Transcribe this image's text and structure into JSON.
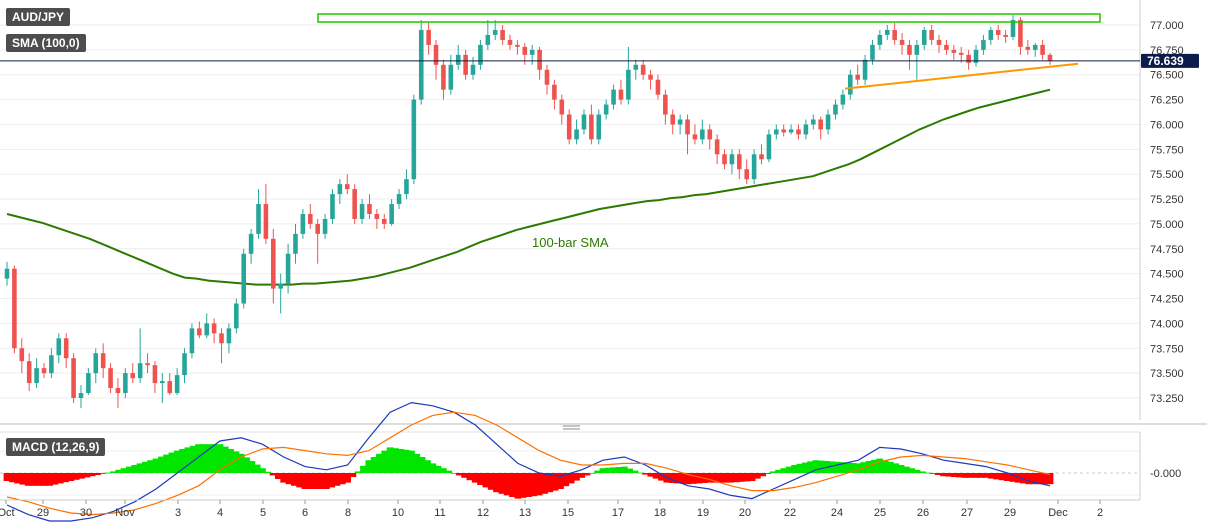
{
  "header": {
    "symbol": "AUD/JPY",
    "sma_label": "SMA (100,0)",
    "macd_label": "MACD (12,26,9)"
  },
  "colors": {
    "bull": "#26a69a",
    "bear": "#ef5350",
    "sma": "#2d7a00",
    "trendline": "#ff9800",
    "resistance": "#27c200",
    "macd_line": "#1c39bb",
    "signal_line": "#ff7000",
    "hist_pos": "#00e600",
    "hist_neg": "#ff0000",
    "price_tag": "#0d1b4a"
  },
  "chart_data": [
    {
      "type": "candlestick",
      "title": "AUD/JPY",
      "price_label": "76.639",
      "last_price": 76.639,
      "ylim": [
        73.05,
        77.22
      ],
      "y_ticks": [
        "77.000",
        "76.750",
        "76.500",
        "76.250",
        "76.000",
        "75.750",
        "75.500",
        "75.250",
        "75.000",
        "74.750",
        "74.500",
        "74.250",
        "74.000",
        "73.750",
        "73.500",
        "73.250"
      ],
      "x_ticks": [
        "Oct",
        "29",
        "30",
        "Nov",
        "3",
        "4",
        "5",
        "6",
        "8",
        "10",
        "11",
        "12",
        "13",
        "15",
        "17",
        "18",
        "19",
        "20",
        "22",
        "24",
        "25",
        "26",
        "27",
        "29",
        "Dec",
        "2"
      ],
      "candles": [
        [
          74.45,
          74.55,
          74.62,
          74.38
        ],
        [
          74.55,
          73.75,
          74.58,
          73.7
        ],
        [
          73.75,
          73.62,
          73.85,
          73.5
        ],
        [
          73.62,
          73.4,
          73.7,
          73.32
        ],
        [
          73.4,
          73.55,
          73.65,
          73.35
        ],
        [
          73.55,
          73.5,
          73.6,
          73.45
        ],
        [
          73.5,
          73.68,
          73.75,
          73.45
        ],
        [
          73.68,
          73.85,
          73.9,
          73.6
        ],
        [
          73.85,
          73.65,
          73.9,
          73.55
        ],
        [
          73.65,
          73.25,
          73.7,
          73.2
        ],
        [
          73.25,
          73.3,
          73.38,
          73.15
        ],
        [
          73.3,
          73.5,
          73.55,
          73.28
        ],
        [
          73.5,
          73.7,
          73.75,
          73.4
        ],
        [
          73.7,
          73.55,
          73.8,
          73.45
        ],
        [
          73.55,
          73.35,
          73.6,
          73.3
        ],
        [
          73.35,
          73.3,
          73.45,
          73.15
        ],
        [
          73.3,
          73.5,
          73.55,
          73.25
        ],
        [
          73.5,
          73.45,
          73.6,
          73.4
        ],
        [
          73.45,
          73.6,
          73.95,
          73.4
        ],
        [
          73.6,
          73.58,
          73.7,
          73.5
        ],
        [
          73.58,
          73.4,
          73.62,
          73.3
        ],
        [
          73.4,
          73.42,
          73.5,
          73.2
        ],
        [
          73.42,
          73.3,
          73.5,
          73.28
        ],
        [
          73.3,
          73.48,
          73.55,
          73.28
        ],
        [
          73.48,
          73.7,
          73.75,
          73.4
        ],
        [
          73.7,
          73.95,
          74.0,
          73.65
        ],
        [
          73.95,
          73.88,
          74.02,
          73.85
        ],
        [
          73.88,
          74.0,
          74.1,
          73.85
        ],
        [
          74.0,
          73.9,
          74.05,
          73.8
        ],
        [
          73.9,
          73.8,
          73.95,
          73.6
        ],
        [
          73.8,
          73.95,
          74.0,
          73.7
        ],
        [
          73.95,
          74.2,
          74.25,
          73.9
        ],
        [
          74.2,
          74.7,
          74.75,
          74.15
        ],
        [
          74.7,
          74.9,
          74.95,
          74.6
        ],
        [
          74.9,
          75.2,
          75.35,
          74.85
        ],
        [
          75.2,
          74.85,
          75.4,
          74.8
        ],
        [
          74.85,
          74.35,
          74.95,
          74.2
        ],
        [
          74.35,
          74.4,
          74.5,
          74.1
        ],
        [
          74.4,
          74.7,
          74.8,
          74.3
        ],
        [
          74.7,
          74.9,
          75.0,
          74.6
        ],
        [
          74.9,
          75.1,
          75.15,
          74.85
        ],
        [
          75.1,
          75.0,
          75.2,
          74.95
        ],
        [
          75.0,
          74.9,
          75.05,
          74.6
        ],
        [
          74.9,
          75.05,
          75.1,
          74.85
        ],
        [
          75.05,
          75.3,
          75.35,
          75.0
        ],
        [
          75.3,
          75.4,
          75.45,
          75.2
        ],
        [
          75.4,
          75.35,
          75.5,
          75.3
        ],
        [
          75.35,
          75.05,
          75.4,
          75.0
        ],
        [
          75.05,
          75.2,
          75.25,
          75.0
        ],
        [
          75.2,
          75.1,
          75.3,
          75.05
        ],
        [
          75.1,
          75.05,
          75.15,
          74.95
        ],
        [
          75.05,
          75.0,
          75.1,
          74.95
        ],
        [
          75.0,
          75.2,
          75.25,
          74.98
        ],
        [
          75.2,
          75.3,
          75.35,
          75.15
        ],
        [
          75.3,
          75.45,
          75.55,
          75.25
        ],
        [
          75.45,
          76.25,
          76.3,
          75.4
        ],
        [
          76.25,
          76.95,
          77.05,
          76.2
        ],
        [
          76.95,
          76.8,
          77.02,
          76.7
        ],
        [
          76.8,
          76.6,
          76.85,
          76.45
        ],
        [
          76.6,
          76.35,
          76.65,
          76.25
        ],
        [
          76.35,
          76.6,
          76.7,
          76.3
        ],
        [
          76.6,
          76.7,
          76.8,
          76.55
        ],
        [
          76.7,
          76.5,
          76.75,
          76.45
        ],
        [
          76.5,
          76.6,
          76.68,
          76.45
        ],
        [
          76.6,
          76.8,
          76.85,
          76.55
        ],
        [
          76.8,
          76.9,
          77.05,
          76.75
        ],
        [
          76.9,
          76.95,
          77.05,
          76.85
        ],
        [
          76.95,
          76.85,
          77.0,
          76.8
        ],
        [
          76.85,
          76.8,
          76.9,
          76.75
        ],
        [
          76.8,
          76.78,
          76.85,
          76.7
        ],
        [
          76.78,
          76.7,
          76.82,
          76.6
        ],
        [
          76.7,
          76.75,
          76.8,
          76.6
        ],
        [
          76.75,
          76.55,
          76.78,
          76.45
        ],
        [
          76.55,
          76.4,
          76.6,
          76.3
        ],
        [
          76.4,
          76.25,
          76.45,
          76.15
        ],
        [
          76.25,
          76.1,
          76.3,
          76.0
        ],
        [
          76.1,
          75.85,
          76.15,
          75.8
        ],
        [
          75.85,
          75.95,
          76.05,
          75.8
        ],
        [
          75.95,
          76.1,
          76.15,
          75.9
        ],
        [
          76.1,
          75.85,
          76.2,
          75.8
        ],
        [
          75.85,
          76.1,
          76.15,
          75.8
        ],
        [
          76.1,
          76.2,
          76.25,
          76.05
        ],
        [
          76.2,
          76.35,
          76.4,
          76.15
        ],
        [
          76.35,
          76.25,
          76.45,
          76.2
        ],
        [
          76.25,
          76.55,
          76.78,
          76.2
        ],
        [
          76.55,
          76.6,
          76.65,
          76.45
        ],
        [
          76.6,
          76.5,
          76.65,
          76.45
        ],
        [
          76.5,
          76.45,
          76.55,
          76.35
        ],
        [
          76.45,
          76.3,
          76.5,
          76.25
        ],
        [
          76.3,
          76.1,
          76.35,
          76.0
        ],
        [
          76.1,
          76.0,
          76.15,
          75.9
        ],
        [
          76.0,
          76.05,
          76.1,
          75.9
        ],
        [
          76.05,
          75.9,
          76.1,
          75.7
        ],
        [
          75.9,
          75.85,
          76.0,
          75.8
        ],
        [
          75.85,
          75.95,
          76.05,
          75.8
        ],
        [
          75.95,
          75.85,
          76.0,
          75.75
        ],
        [
          75.85,
          75.7,
          75.9,
          75.6
        ],
        [
          75.7,
          75.6,
          75.75,
          75.55
        ],
        [
          75.6,
          75.7,
          75.75,
          75.5
        ],
        [
          75.7,
          75.55,
          75.75,
          75.45
        ],
        [
          75.55,
          75.45,
          75.65,
          75.4
        ],
        [
          75.45,
          75.7,
          75.75,
          75.4
        ],
        [
          75.7,
          75.65,
          75.8,
          75.6
        ],
        [
          75.65,
          75.9,
          75.95,
          75.62
        ],
        [
          75.9,
          75.95,
          76.0,
          75.85
        ],
        [
          75.95,
          75.92,
          76.0,
          75.88
        ],
        [
          75.92,
          75.95,
          76.0,
          75.9
        ],
        [
          75.95,
          75.9,
          76.0,
          75.85
        ],
        [
          75.9,
          76.0,
          76.05,
          75.85
        ],
        [
          76.0,
          76.05,
          76.1,
          75.95
        ],
        [
          76.05,
          75.95,
          76.08,
          75.85
        ],
        [
          75.95,
          76.1,
          76.15,
          75.9
        ],
        [
          76.1,
          76.2,
          76.25,
          76.05
        ],
        [
          76.2,
          76.3,
          76.35,
          76.15
        ],
        [
          76.3,
          76.5,
          76.55,
          76.25
        ],
        [
          76.5,
          76.45,
          76.6,
          76.4
        ],
        [
          76.45,
          76.65,
          76.7,
          76.4
        ],
        [
          76.65,
          76.8,
          76.85,
          76.6
        ],
        [
          76.8,
          76.9,
          76.95,
          76.75
        ],
        [
          76.9,
          76.95,
          77.0,
          76.85
        ],
        [
          76.95,
          76.85,
          77.02,
          76.8
        ],
        [
          76.85,
          76.8,
          76.92,
          76.7
        ],
        [
          76.8,
          76.7,
          76.85,
          76.55
        ],
        [
          76.7,
          76.8,
          76.85,
          76.45
        ],
        [
          76.8,
          76.95,
          76.98,
          76.75
        ],
        [
          76.95,
          76.85,
          77.0,
          76.8
        ],
        [
          76.85,
          76.8,
          76.9,
          76.72
        ],
        [
          76.8,
          76.75,
          76.85,
          76.7
        ],
        [
          76.75,
          76.72,
          76.8,
          76.65
        ],
        [
          76.72,
          76.7,
          76.78,
          76.62
        ],
        [
          76.7,
          76.62,
          76.75,
          76.55
        ],
        [
          76.62,
          76.75,
          76.8,
          76.58
        ],
        [
          76.75,
          76.85,
          76.9,
          76.7
        ],
        [
          76.85,
          76.95,
          76.98,
          76.8
        ],
        [
          76.95,
          76.9,
          77.0,
          76.85
        ],
        [
          76.9,
          76.88,
          76.95,
          76.82
        ],
        [
          76.88,
          77.05,
          77.1,
          76.85
        ],
        [
          77.05,
          76.78,
          77.08,
          76.7
        ],
        [
          76.78,
          76.75,
          76.85,
          76.7
        ],
        [
          76.75,
          76.8,
          76.82,
          76.68
        ],
        [
          76.8,
          76.7,
          76.85,
          76.65
        ],
        [
          76.7,
          76.639,
          76.72,
          76.6
        ]
      ],
      "sma_100": [
        75.1,
        75.07,
        75.04,
        75.01,
        74.97,
        74.93,
        74.89,
        74.85,
        74.8,
        74.75,
        74.7,
        74.65,
        74.6,
        74.55,
        74.5,
        74.46,
        74.45,
        74.43,
        74.42,
        74.41,
        74.4,
        74.39,
        74.39,
        74.39,
        74.39,
        74.4,
        74.4,
        74.41,
        74.42,
        74.43,
        74.45,
        74.47,
        74.5,
        74.53,
        74.56,
        74.6,
        74.64,
        74.68,
        74.72,
        74.77,
        74.82,
        74.86,
        74.9,
        74.94,
        74.97,
        75.0,
        75.03,
        75.06,
        75.09,
        75.12,
        75.15,
        75.17,
        75.19,
        75.21,
        75.23,
        75.24,
        75.26,
        75.27,
        75.29,
        75.3,
        75.32,
        75.34,
        75.36,
        75.38,
        75.4,
        75.42,
        75.44,
        75.46,
        75.48,
        75.52,
        75.56,
        75.6,
        75.65,
        75.71,
        75.77,
        75.83,
        75.89,
        75.95,
        76.0,
        76.05,
        76.09,
        76.13,
        76.17,
        76.2,
        76.23,
        76.26,
        76.29,
        76.32,
        76.35
      ],
      "resistance": 77.07,
      "trendline": [
        76.36,
        76.61
      ],
      "annotation": "100-bar SMA"
    },
    {
      "type": "macd",
      "title": "MACD (12,26,9)",
      "zero_label": "-0.000",
      "macd": [
        -0.2,
        -0.26,
        -0.3,
        -0.3,
        -0.28,
        -0.24,
        -0.18,
        -0.1,
        0.0,
        0.1,
        0.2,
        0.22,
        0.18,
        0.1,
        0.04,
        0.02,
        0.05,
        0.22,
        0.38,
        0.44,
        0.42,
        0.38,
        0.3,
        0.18,
        0.06,
        0.0,
        -0.02,
        0.02,
        0.08,
        0.1,
        0.05,
        -0.03,
        -0.08,
        -0.1,
        -0.14,
        -0.16,
        -0.1,
        -0.04,
        0.02,
        0.05,
        0.08,
        0.16,
        0.15,
        0.12,
        0.08,
        0.06,
        0.04,
        0.0,
        -0.05,
        -0.08
      ],
      "signal": [
        -0.15,
        -0.18,
        -0.22,
        -0.25,
        -0.26,
        -0.25,
        -0.23,
        -0.19,
        -0.14,
        -0.08,
        0.02,
        0.1,
        0.15,
        0.16,
        0.14,
        0.12,
        0.11,
        0.14,
        0.22,
        0.3,
        0.36,
        0.38,
        0.36,
        0.3,
        0.22,
        0.14,
        0.08,
        0.05,
        0.05,
        0.06,
        0.06,
        0.03,
        -0.01,
        -0.04,
        -0.08,
        -0.11,
        -0.11,
        -0.09,
        -0.06,
        -0.02,
        0.02,
        0.07,
        0.1,
        0.11,
        0.1,
        0.09,
        0.07,
        0.05,
        0.02,
        -0.01
      ],
      "histogram": [
        -0.05,
        -0.08,
        -0.08,
        -0.05,
        -0.02,
        0.01,
        0.05,
        0.09,
        0.14,
        0.18,
        0.18,
        0.12,
        0.03,
        -0.06,
        -0.1,
        -0.1,
        -0.06,
        0.08,
        0.16,
        0.14,
        0.06,
        0.0,
        -0.06,
        -0.12,
        -0.16,
        -0.14,
        -0.1,
        -0.03,
        0.03,
        0.04,
        -0.01,
        -0.06,
        -0.07,
        -0.06,
        -0.06,
        -0.05,
        0.01,
        0.05,
        0.08,
        0.07,
        0.06,
        0.09,
        0.05,
        0.01,
        -0.02,
        -0.03,
        -0.03,
        -0.05,
        -0.07,
        -0.07
      ]
    }
  ]
}
